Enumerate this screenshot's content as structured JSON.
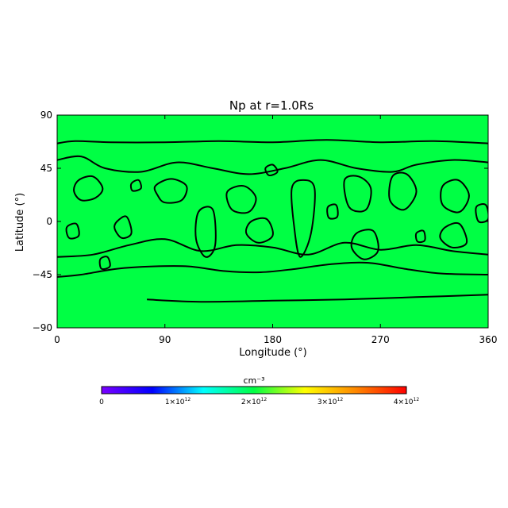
{
  "chart_data": {
    "type": "heatmap",
    "title": "Np at r=1.0Rs",
    "xlabel": "Longitude (°)",
    "ylabel": "Latitude (°)",
    "xlim": [
      0,
      360
    ],
    "ylim": [
      -90,
      90
    ],
    "x_ticks": [
      "0",
      "90",
      "180",
      "270",
      "360"
    ],
    "y_ticks": [
      "90",
      "45",
      "0",
      "−45",
      "−90"
    ],
    "field_color": "#00ff44",
    "contour_color": "#000000",
    "contours": [
      {
        "kind": "band",
        "points": [
          [
            0,
            66
          ],
          [
            15,
            68
          ],
          [
            45,
            67
          ],
          [
            90,
            67
          ],
          [
            135,
            68
          ],
          [
            180,
            67
          ],
          [
            225,
            69
          ],
          [
            270,
            67
          ],
          [
            315,
            68
          ],
          [
            360,
            66
          ]
        ]
      },
      {
        "kind": "band",
        "points": [
          [
            0,
            -47
          ],
          [
            20,
            -45
          ],
          [
            50,
            -40
          ],
          [
            80,
            -38
          ],
          [
            110,
            -38
          ],
          [
            140,
            -42
          ],
          [
            170,
            -43
          ],
          [
            200,
            -40
          ],
          [
            230,
            -36
          ],
          [
            260,
            -35
          ],
          [
            290,
            -40
          ],
          [
            320,
            -44
          ],
          [
            360,
            -45
          ]
        ]
      },
      {
        "kind": "band",
        "points": [
          [
            75,
            -66
          ],
          [
            120,
            -68
          ],
          [
            180,
            -67
          ],
          [
            240,
            -66
          ],
          [
            300,
            -64
          ],
          [
            360,
            -62
          ]
        ]
      },
      {
        "kind": "band",
        "points": [
          [
            0,
            52
          ],
          [
            20,
            55
          ],
          [
            40,
            45
          ],
          [
            70,
            42
          ],
          [
            100,
            50
          ],
          [
            130,
            45
          ],
          [
            160,
            40
          ],
          [
            190,
            45
          ],
          [
            220,
            52
          ],
          [
            250,
            45
          ],
          [
            280,
            42
          ],
          [
            300,
            48
          ],
          [
            330,
            52
          ],
          [
            360,
            50
          ]
        ]
      },
      {
        "kind": "band",
        "points": [
          [
            0,
            -30
          ],
          [
            30,
            -28
          ],
          [
            60,
            -20
          ],
          [
            90,
            -15
          ],
          [
            120,
            -25
          ],
          [
            150,
            -20
          ],
          [
            180,
            -22
          ],
          [
            210,
            -28
          ],
          [
            240,
            -18
          ],
          [
            270,
            -24
          ],
          [
            300,
            -20
          ],
          [
            330,
            -25
          ],
          [
            360,
            -28
          ]
        ]
      },
      {
        "kind": "loop",
        "points": [
          [
            18,
            35
          ],
          [
            30,
            38
          ],
          [
            38,
            28
          ],
          [
            32,
            20
          ],
          [
            20,
            18
          ],
          [
            14,
            26
          ]
        ]
      },
      {
        "kind": "loop",
        "points": [
          [
            82,
            30
          ],
          [
            95,
            36
          ],
          [
            108,
            30
          ],
          [
            104,
            18
          ],
          [
            90,
            16
          ],
          [
            84,
            22
          ]
        ]
      },
      {
        "kind": "loop",
        "points": [
          [
            118,
            8
          ],
          [
            130,
            10
          ],
          [
            132,
            -20
          ],
          [
            124,
            -30
          ],
          [
            116,
            -15
          ]
        ]
      },
      {
        "kind": "loop",
        "points": [
          [
            142,
            25
          ],
          [
            156,
            30
          ],
          [
            166,
            20
          ],
          [
            160,
            8
          ],
          [
            146,
            10
          ]
        ]
      },
      {
        "kind": "loop",
        "points": [
          [
            162,
            0
          ],
          [
            175,
            2
          ],
          [
            180,
            -12
          ],
          [
            168,
            -18
          ],
          [
            158,
            -10
          ]
        ]
      },
      {
        "kind": "loop",
        "points": [
          [
            196,
            28
          ],
          [
            205,
            35
          ],
          [
            215,
            28
          ],
          [
            212,
            -10
          ],
          [
            203,
            -30
          ],
          [
            198,
            -5
          ]
        ]
      },
      {
        "kind": "loop",
        "points": [
          [
            240,
            35
          ],
          [
            252,
            38
          ],
          [
            262,
            28
          ],
          [
            258,
            10
          ],
          [
            244,
            12
          ]
        ]
      },
      {
        "kind": "loop",
        "points": [
          [
            250,
            -10
          ],
          [
            264,
            -8
          ],
          [
            268,
            -25
          ],
          [
            256,
            -32
          ],
          [
            246,
            -22
          ]
        ]
      },
      {
        "kind": "loop",
        "points": [
          [
            280,
            38
          ],
          [
            292,
            40
          ],
          [
            300,
            25
          ],
          [
            290,
            10
          ],
          [
            278,
            18
          ]
        ]
      },
      {
        "kind": "loop",
        "points": [
          [
            322,
            30
          ],
          [
            335,
            35
          ],
          [
            344,
            22
          ],
          [
            336,
            8
          ],
          [
            322,
            14
          ]
        ]
      },
      {
        "kind": "loop",
        "points": [
          [
            324,
            -5
          ],
          [
            336,
            -2
          ],
          [
            342,
            -18
          ],
          [
            330,
            -22
          ],
          [
            320,
            -14
          ]
        ]
      },
      {
        "kind": "loop",
        "points": [
          [
            50,
            0
          ],
          [
            58,
            4
          ],
          [
            62,
            -10
          ],
          [
            54,
            -14
          ],
          [
            48,
            -6
          ]
        ]
      },
      {
        "kind": "loop",
        "points": [
          [
            8,
            -5
          ],
          [
            16,
            -2
          ],
          [
            18,
            -12
          ],
          [
            10,
            -14
          ]
        ]
      },
      {
        "kind": "loop",
        "points": [
          [
            350,
            12
          ],
          [
            358,
            14
          ],
          [
            360,
            2
          ],
          [
            352,
            0
          ]
        ]
      },
      {
        "kind": "loop",
        "points": [
          [
            36,
            -32
          ],
          [
            42,
            -30
          ],
          [
            44,
            -38
          ],
          [
            37,
            -40
          ]
        ]
      },
      {
        "kind": "loop",
        "points": [
          [
            226,
            12
          ],
          [
            233,
            14
          ],
          [
            234,
            4
          ],
          [
            227,
            3
          ]
        ]
      },
      {
        "kind": "loop",
        "points": [
          [
            300,
            -10
          ],
          [
            306,
            -8
          ],
          [
            307,
            -16
          ],
          [
            301,
            -17
          ]
        ]
      },
      {
        "kind": "loop",
        "points": [
          [
            174,
            45
          ],
          [
            180,
            48
          ],
          [
            184,
            42
          ],
          [
            177,
            39
          ]
        ]
      },
      {
        "kind": "loop",
        "points": [
          [
            62,
            32
          ],
          [
            68,
            35
          ],
          [
            70,
            28
          ],
          [
            63,
            26
          ]
        ]
      }
    ],
    "colorbar": {
      "unit": "cm⁻³",
      "range": [
        0,
        4000000000000.0
      ],
      "ticks": [
        {
          "value": 0,
          "mantissa": "0",
          "exp": ""
        },
        {
          "value": 1000000000000.0,
          "mantissa": "1×10",
          "exp": "12"
        },
        {
          "value": 2000000000000.0,
          "mantissa": "2×10",
          "exp": "12"
        },
        {
          "value": 3000000000000.0,
          "mantissa": "3×10",
          "exp": "12"
        },
        {
          "value": 4000000000000.0,
          "mantissa": "4×10",
          "exp": "12"
        }
      ],
      "colors": [
        "#7a00ff",
        "#0000ff",
        "#00ffff",
        "#00ff44",
        "#ffff00",
        "#ff8800",
        "#ff0000"
      ]
    }
  }
}
